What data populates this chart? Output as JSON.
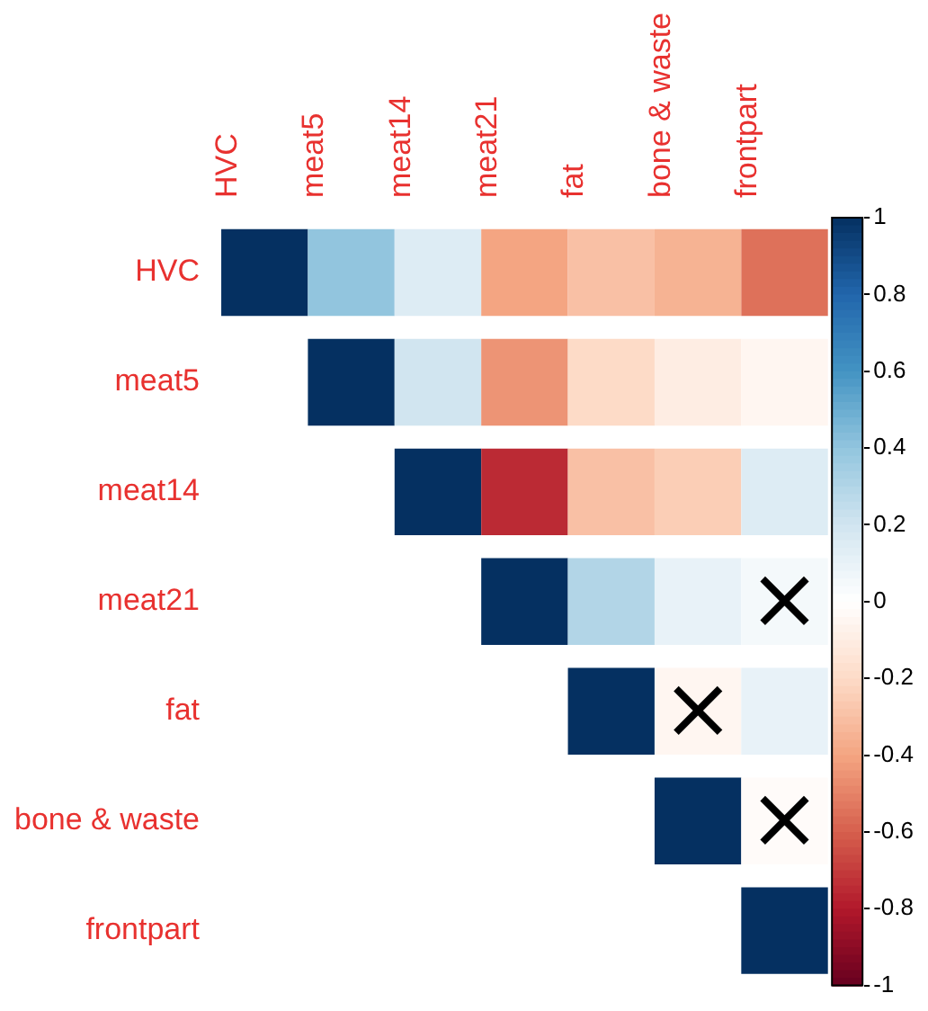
{
  "chart_data": {
    "type": "heatmap",
    "categories": [
      "HVC",
      "meat5",
      "meat14",
      "meat21",
      "fat",
      "bone & waste",
      "frontpart"
    ],
    "y_categories": [
      "HVC",
      "meat5",
      "meat14",
      "meat21",
      "fat",
      "bone & waste",
      "frontpart"
    ],
    "cells": [
      [
        1,
        0.4,
        0.15,
        -0.4,
        -0.3,
        -0.35,
        -0.55
      ],
      [
        null,
        1,
        0.2,
        -0.45,
        -0.2,
        -0.1,
        -0.05
      ],
      [
        null,
        null,
        1,
        -0.75,
        -0.3,
        -0.25,
        0.15
      ],
      [
        null,
        null,
        null,
        1,
        0.3,
        0.1,
        0.05
      ],
      [
        null,
        null,
        null,
        null,
        1,
        -0.05,
        0.1
      ],
      [
        null,
        null,
        null,
        null,
        null,
        1,
        -0.02
      ],
      [
        null,
        null,
        null,
        null,
        null,
        null,
        1
      ]
    ],
    "cell_labels": [
      [
        null,
        null,
        null,
        null,
        null,
        null,
        null
      ],
      [
        null,
        null,
        null,
        null,
        null,
        null,
        null
      ],
      [
        null,
        null,
        null,
        null,
        null,
        null,
        null
      ],
      [
        null,
        null,
        null,
        null,
        null,
        null,
        "×"
      ],
      [
        null,
        null,
        null,
        null,
        null,
        "×",
        null
      ],
      [
        null,
        null,
        null,
        null,
        null,
        null,
        "×"
      ],
      [
        null,
        null,
        null,
        null,
        null,
        null,
        null
      ]
    ],
    "clim": [
      -1,
      1
    ],
    "cticks": [
      1,
      0.8,
      0.6,
      0.4,
      0.2,
      0,
      -0.2,
      -0.4,
      -0.6,
      -0.8,
      -1
    ]
  }
}
